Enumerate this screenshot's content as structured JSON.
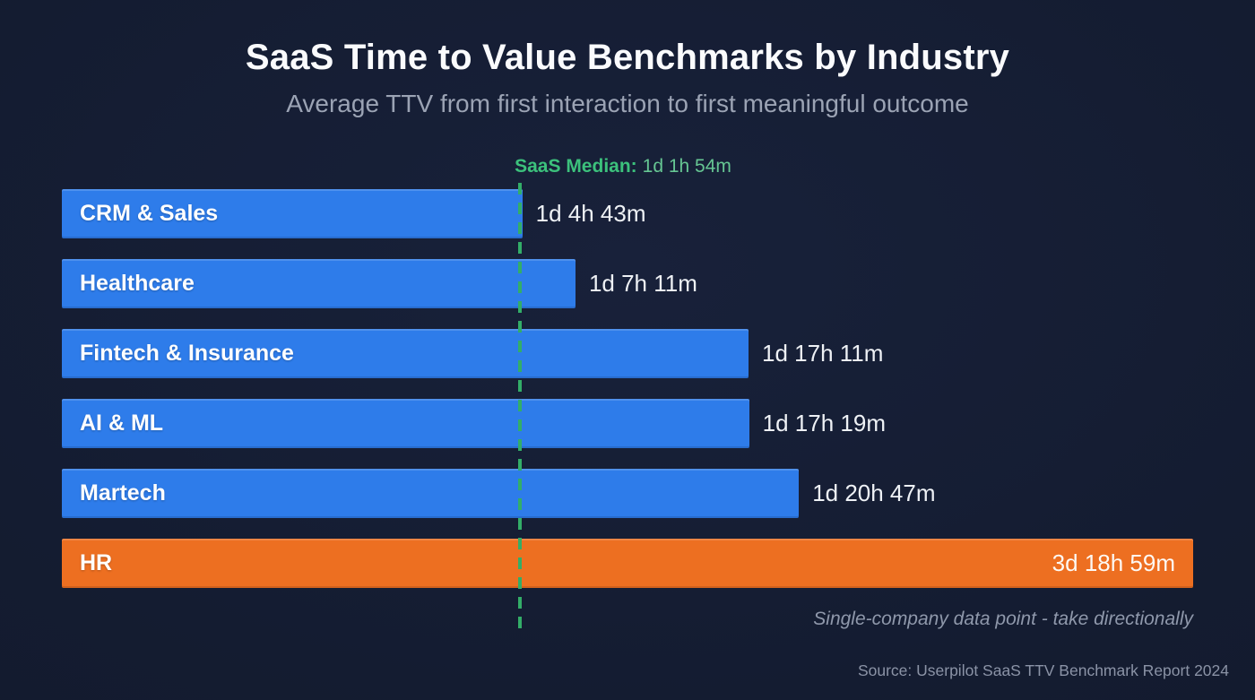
{
  "page": {
    "title": "SaaS Time to Value Benchmarks by Industry",
    "subtitle": "Average TTV from first interaction to first meaningful outcome",
    "footnote": "Single-company data point - take directionally",
    "source": "Source: Userpilot SaaS TTV Benchmark Report 2024"
  },
  "colors": {
    "background": "#141c31",
    "bar_blue": "#2e7cea",
    "bar_orange": "#ed6f21",
    "median_green": "#3cc17c",
    "median_line_green": "#33ad68",
    "title_white": "#fafbfd",
    "subtitle_gray": "#9ba3b4"
  },
  "chart_data": {
    "type": "bar",
    "orientation": "horizontal",
    "title": "SaaS Time to Value Benchmarks by Industry",
    "subtitle": "Average TTV from first interaction to first meaningful outcome",
    "unit": "elapsed time (days, hours, minutes)",
    "categories": [
      "CRM & Sales",
      "Healthcare",
      "Fintech & Insurance",
      "AI & ML",
      "Martech",
      "HR"
    ],
    "values_display": [
      "1d 4h 43m",
      "1d 7h 11m",
      "1d 17h 11m",
      "1d 17h 19m",
      "1d 20h 47m",
      "3d 18h 59m"
    ],
    "values_hours": [
      28.72,
      31.18,
      41.18,
      41.32,
      44.78,
      90.98
    ],
    "median": {
      "label": "SaaS Median:",
      "value": "1d 1h 54m",
      "hours": 25.9,
      "line_left": "40.5%"
    },
    "annotation": "Single-company data point - take directionally",
    "legend": "none",
    "grid": "off",
    "rows": [
      {
        "label": "CRM & Sales",
        "value": "1d 4h 43m",
        "hours": 28.72,
        "width": "40.7%",
        "color": "#2e7cea"
      },
      {
        "label": "Healthcare",
        "value": "1d 7h 11m",
        "hours": 31.18,
        "width": "45.4%",
        "color": "#2e7cea"
      },
      {
        "label": "Fintech & Insurance",
        "value": "1d 17h 11m",
        "hours": 41.18,
        "width": "60.7%",
        "color": "#2e7cea"
      },
      {
        "label": "AI & ML",
        "value": "1d 17h 19m",
        "hours": 41.32,
        "width": "60.75%",
        "color": "#2e7cea"
      },
      {
        "label": "Martech",
        "value": "1d 20h 47m",
        "hours": 44.78,
        "width": "65.15%",
        "color": "#2e7cea"
      },
      {
        "label": "HR",
        "value": "3d 18h 59m",
        "hours": 90.98,
        "width": "100%",
        "color": "#ed6f21",
        "value_inside": true
      }
    ]
  }
}
